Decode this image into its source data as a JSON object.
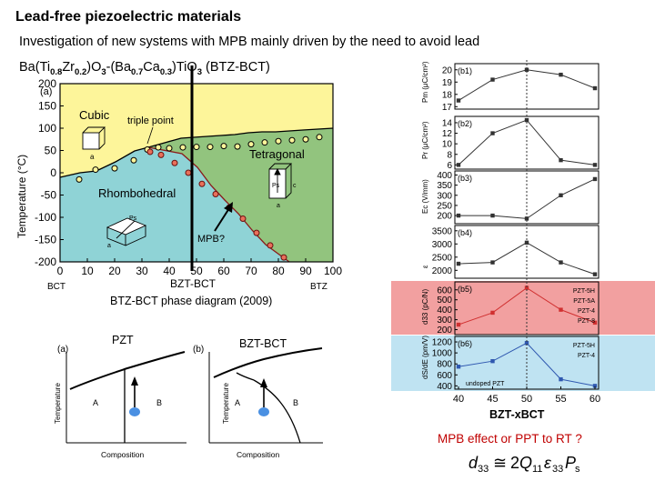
{
  "slide": {
    "title": "Lead-free piezoelectric materials",
    "subtitle": "Investigation of new systems with MPB mainly driven by the need to avoid lead",
    "formula_parts": {
      "ba_ti": "Ba(Ti",
      "s1": "0.8",
      "zr": "Zr",
      "s2": "0.2",
      "o3a": ")O",
      "s3": "3",
      "mid": "-(Ba",
      "s4": "0.7",
      "ca": "Ca",
      "s5": "0.3",
      "tio": ")TiO",
      "s6": "3",
      "tail": " (BTZ-BCT)"
    }
  },
  "phase_diagram": {
    "panel_label": "(a)",
    "ylabel": "Temperature (°C)",
    "xlabel": "BZT-BCT",
    "region_labels": {
      "cubic": "Cubic",
      "tetragonal": "Tetragonal",
      "rhombohedral": "Rhombohedral",
      "triple_point": "triple point"
    },
    "lattice_labels": {
      "cubic_a": "a",
      "tet_ps": "Ps",
      "tet_c": "c",
      "tet_a": "a",
      "rho_ps": "Ps",
      "rho_a": "a"
    },
    "annotation_mpb": "MPB?",
    "end_left": "BCT",
    "end_right": "BTZ",
    "caption": "BTZ-BCT phase diagram (2009)",
    "chart_data": {
      "type": "scatter",
      "x_ticks": [
        0,
        10,
        20,
        30,
        40,
        50,
        60,
        70,
        80,
        90,
        100
      ],
      "y_ticks": [
        200,
        150,
        100,
        50,
        0,
        -50,
        -100,
        -150,
        -200
      ],
      "xlim": [
        0,
        100
      ],
      "ylim": [
        -200,
        200
      ],
      "series": [
        {
          "x": [
            7,
            13,
            20,
            27,
            32,
            36,
            40,
            45,
            50,
            55,
            60,
            65,
            70,
            75,
            80,
            85,
            90,
            95
          ],
          "y": [
            -15,
            7,
            10,
            28,
            52,
            57,
            55,
            57,
            58,
            58,
            60,
            59,
            64,
            68,
            71,
            73,
            75,
            80
          ]
        },
        {
          "x": [
            33,
            37,
            42,
            47,
            52,
            57,
            62,
            67,
            72,
            77,
            82
          ],
          "y": [
            47,
            40,
            22,
            0,
            -25,
            -48,
            -78,
            -103,
            -135,
            -163,
            -190
          ]
        }
      ]
    }
  },
  "property_panels": {
    "xlabel": "BZT-xBCT",
    "x_ticks": [
      40,
      45,
      50,
      55,
      60
    ],
    "panels": [
      {
        "tag": "(b1)",
        "ylabel": "Pm (μC/cm²)",
        "y_ticks": [
          20,
          19,
          18,
          17
        ],
        "ylim": [
          16.8,
          20.5
        ],
        "chart_data": {
          "type": "line",
          "x": [
            40,
            45,
            50,
            55,
            60
          ],
          "y": [
            17.5,
            19.2,
            20.0,
            19.6,
            18.5
          ]
        }
      },
      {
        "tag": "(b2)",
        "ylabel": "Pr (μC/cm²)",
        "y_ticks": [
          14,
          12,
          10,
          8,
          6
        ],
        "ylim": [
          5.2,
          15.2
        ],
        "chart_data": {
          "type": "line",
          "x": [
            40,
            45,
            50,
            55,
            60
          ],
          "y": [
            6.0,
            12.0,
            14.5,
            6.9,
            6.0
          ]
        }
      },
      {
        "tag": "(b3)",
        "ylabel": "Ec (V/mm)",
        "y_ticks": [
          400,
          350,
          300,
          250,
          200
        ],
        "ylim": [
          160,
          420
        ],
        "chart_data": {
          "type": "line",
          "x": [
            40,
            45,
            50,
            55,
            60
          ],
          "y": [
            200,
            200,
            185,
            300,
            380
          ]
        }
      },
      {
        "tag": "(b4)",
        "ylabel": "ε",
        "y_ticks": [
          3500,
          3000,
          2500,
          2000
        ],
        "ylim": [
          1700,
          3700
        ],
        "chart_data": {
          "type": "line",
          "x": [
            40,
            45,
            50,
            55,
            60
          ],
          "y": [
            2250,
            2300,
            3050,
            2300,
            1850
          ]
        }
      },
      {
        "tag": "(b5)",
        "ylabel": "d33 (pC/N)",
        "y_ticks": [
          600,
          500,
          400,
          300,
          200
        ],
        "ylim": [
          150,
          680
        ],
        "legend": [
          "PZT-5H",
          "PZT-5A",
          "PZT-4",
          "PZT-8"
        ],
        "chart_data": {
          "type": "line",
          "x": [
            40,
            45,
            50,
            55,
            60
          ],
          "y": [
            250,
            370,
            620,
            400,
            270
          ]
        }
      },
      {
        "tag": "(b6)",
        "ylabel": "dS/dE (pm/V)",
        "y_ticks": [
          1200,
          1000,
          800,
          600,
          400
        ],
        "ylim": [
          340,
          1300
        ],
        "legend": [
          "PZT-5H",
          "PZT-4"
        ],
        "note": "undoped PZT",
        "chart_data": {
          "type": "line",
          "x": [
            40,
            45,
            50,
            55,
            60
          ],
          "y": [
            750,
            850,
            1180,
            520,
            400
          ]
        }
      }
    ]
  },
  "schematics": {
    "pzt": {
      "title": "PZT",
      "tag": "(a)",
      "ylabel": "Temperature",
      "xlabel": "Composition",
      "phase_a": "A",
      "phase_b": "B"
    },
    "bzt": {
      "title": "BZT-BCT",
      "tag": "(b)",
      "ylabel": "Temperature",
      "xlabel": "Composition",
      "phase_a": "A",
      "phase_b": "B"
    }
  },
  "footer": {
    "question": "MPB effect or PPT to RT ?",
    "equation": {
      "d": "d",
      "d_sub": "33",
      "approx": "≅",
      "two": "2",
      "q": "Q",
      "q_sub": "11",
      "eps": "ε",
      "eps_sub": "33",
      "p": "P",
      "p_sub": "s"
    }
  },
  "colors": {
    "cubic": "#fdf59a",
    "tetragonal": "#92c47e",
    "rhombohedral": "#8fd3d6",
    "d33_band": "#f2a0a0",
    "strain_band": "#bfe3f2",
    "point_blue": "#4a90e2"
  }
}
